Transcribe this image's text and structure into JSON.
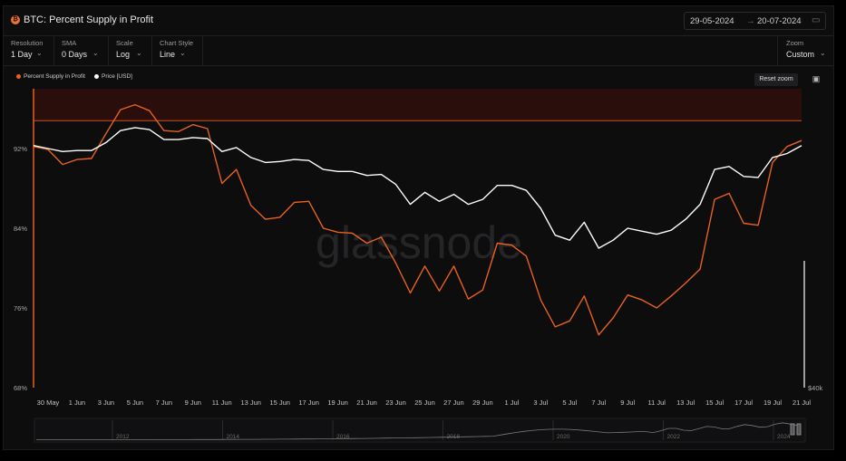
{
  "header": {
    "title": "BTC: Percent Supply in Profit",
    "asset_icon": "bitcoin-icon",
    "date_from": "29-05-2024",
    "date_separator": "→",
    "date_to": "20-07-2024",
    "calendar_icon": "calendar-icon"
  },
  "controls": [
    {
      "label": "Resolution",
      "value": "1 Day"
    },
    {
      "label": "SMA",
      "value": "0 Days"
    },
    {
      "label": "Scale",
      "value": "Log"
    },
    {
      "label": "Chart Style",
      "value": "Line"
    }
  ],
  "zoom": {
    "label": "Zoom",
    "value": "Custom"
  },
  "toolbar": {
    "reset_zoom": "Reset zoom",
    "camera_icon": "camera-icon"
  },
  "watermark": "glassnode",
  "colors": {
    "supply": "#e8611f",
    "price": "#ffffff",
    "band": "#2a0e0c",
    "band_line": "#d0501f"
  },
  "chart_data": {
    "type": "line",
    "title": "BTC: Percent Supply in Profit",
    "x": [
      "2024-05-29",
      "2024-05-30",
      "2024-05-31",
      "2024-06-01",
      "2024-06-02",
      "2024-06-03",
      "2024-06-04",
      "2024-06-05",
      "2024-06-06",
      "2024-06-07",
      "2024-06-08",
      "2024-06-09",
      "2024-06-10",
      "2024-06-11",
      "2024-06-12",
      "2024-06-13",
      "2024-06-14",
      "2024-06-15",
      "2024-06-16",
      "2024-06-17",
      "2024-06-18",
      "2024-06-19",
      "2024-06-20",
      "2024-06-21",
      "2024-06-22",
      "2024-06-23",
      "2024-06-24",
      "2024-06-25",
      "2024-06-26",
      "2024-06-27",
      "2024-06-28",
      "2024-06-29",
      "2024-06-30",
      "2024-07-01",
      "2024-07-02",
      "2024-07-03",
      "2024-07-04",
      "2024-07-05",
      "2024-07-06",
      "2024-07-07",
      "2024-07-08",
      "2024-07-09",
      "2024-07-10",
      "2024-07-11",
      "2024-07-12",
      "2024-07-13",
      "2024-07-14",
      "2024-07-15",
      "2024-07-16",
      "2024-07-17",
      "2024-07-18",
      "2024-07-19",
      "2024-07-20",
      "2024-07-21"
    ],
    "x_tick_labels": [
      "30 May",
      "1 Jun",
      "3 Jun",
      "5 Jun",
      "7 Jun",
      "9 Jun",
      "11 Jun",
      "13 Jun",
      "15 Jun",
      "17 Jun",
      "19 Jun",
      "21 Jun",
      "23 Jun",
      "25 Jun",
      "27 Jun",
      "29 Jun",
      "1 Jul",
      "3 Jul",
      "5 Jul",
      "7 Jul",
      "9 Jul",
      "11 Jul",
      "13 Jul",
      "15 Jul",
      "17 Jul",
      "19 Jul",
      "21 Jul"
    ],
    "y_left_ticks": [
      "92%",
      "84%",
      "76%",
      "68%"
    ],
    "y_left_range": [
      68,
      98
    ],
    "y_right_ticks": [
      "$40k"
    ],
    "highlight_band": [
      94.8,
      99.8
    ],
    "series": [
      {
        "name": "Percent Supply in Profit",
        "axis": "left",
        "values": [
          92.2,
          91.9,
          90.4,
          90.9,
          91.0,
          93.5,
          95.9,
          96.4,
          95.8,
          93.8,
          93.7,
          94.4,
          94.0,
          88.5,
          89.9,
          86.3,
          84.9,
          85.1,
          86.6,
          86.7,
          84.0,
          83.6,
          83.5,
          82.5,
          83.1,
          80.5,
          77.5,
          80.2,
          77.7,
          80.2,
          76.9,
          77.8,
          82.5,
          82.3,
          81.2,
          76.8,
          74.1,
          74.7,
          77.2,
          73.3,
          75.0,
          77.3,
          76.8,
          76.0,
          77.2,
          78.5,
          79.9,
          86.9,
          87.5,
          84.5,
          84.3,
          90.6,
          92.2,
          92.8
        ],
        "color": "#e8611f"
      },
      {
        "name": "Price [USD]",
        "axis": "right",
        "values": [
          92.3,
          92.0,
          91.7,
          91.8,
          91.8,
          92.6,
          93.8,
          94.1,
          93.9,
          92.9,
          92.9,
          93.1,
          93.0,
          91.7,
          92.1,
          91.1,
          90.6,
          90.7,
          90.9,
          90.8,
          89.9,
          89.7,
          89.7,
          89.3,
          89.4,
          88.4,
          86.4,
          87.6,
          86.7,
          87.4,
          86.4,
          86.9,
          88.3,
          88.3,
          87.8,
          86.0,
          83.3,
          82.8,
          84.6,
          82.0,
          82.8,
          84.0,
          83.7,
          83.4,
          83.8,
          84.9,
          86.4,
          89.9,
          90.2,
          89.2,
          89.1,
          91.1,
          91.5,
          92.3
        ],
        "color": "#ffffff"
      }
    ],
    "navigator": {
      "year_labels": [
        "2012",
        "2014",
        "2016",
        "2018",
        "2020",
        "2022",
        "2024"
      ]
    }
  }
}
